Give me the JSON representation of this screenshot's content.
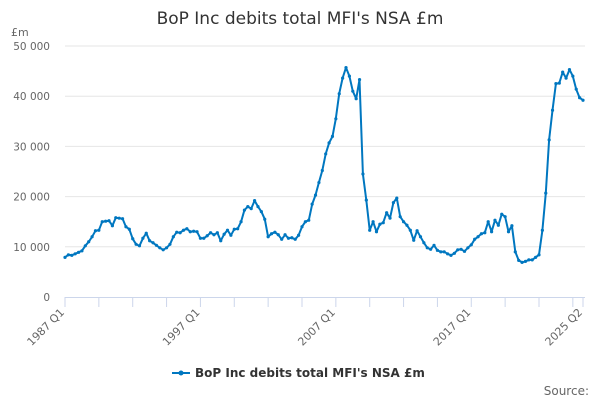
{
  "chart_data": {
    "type": "line",
    "title": "BoP Inc debits total MFI's NSA £m",
    "ylabel": "£m",
    "xlabel": "",
    "ylim": [
      0,
      50000
    ],
    "yticks": [
      0,
      10000,
      20000,
      30000,
      40000,
      50000
    ],
    "ytick_labels": [
      "0",
      "10 000",
      "20 000",
      "30 000",
      "40 000",
      "50 000"
    ],
    "x_start": "1987 Q1",
    "x_end": "2025 Q2",
    "frequency": "quarterly",
    "xtick_labels": [
      {
        "index": 0,
        "label": "1987 Q1"
      },
      {
        "index": 40,
        "label": "1997 Q1"
      },
      {
        "index": 80,
        "label": "2007 Q1"
      },
      {
        "index": 120,
        "label": "2017 Q1"
      },
      {
        "index": 153,
        "label": "2025 Q2"
      }
    ],
    "grid": true,
    "legend_position": "bottom-center",
    "series": [
      {
        "name": "BoP Inc debits total MFI's NSA £m",
        "color": "#0077c0",
        "values": [
          7900,
          8400,
          8300,
          8600,
          8900,
          9200,
          10200,
          11000,
          12000,
          13200,
          13300,
          15000,
          15100,
          15200,
          14200,
          15800,
          15700,
          15600,
          14000,
          13500,
          11600,
          10500,
          10200,
          11700,
          12700,
          11200,
          10800,
          10300,
          9800,
          9400,
          9800,
          10500,
          12000,
          12900,
          12800,
          13300,
          13600,
          13000,
          13100,
          13000,
          11700,
          11700,
          12200,
          12800,
          12400,
          12800,
          11200,
          12500,
          13300,
          12300,
          13500,
          13600,
          15000,
          17300,
          18000,
          17600,
          19200,
          18000,
          17000,
          15500,
          12000,
          12600,
          12900,
          12400,
          11500,
          12400,
          11700,
          11800,
          11500,
          12300,
          14000,
          15000,
          15300,
          18500,
          20300,
          22800,
          25200,
          28500,
          30700,
          32000,
          35500,
          40500,
          43600,
          45700,
          44000,
          41000,
          39500,
          43300,
          24500,
          19300,
          13300,
          15000,
          13000,
          14500,
          14800,
          16800,
          15700,
          18800,
          19700,
          16000,
          15000,
          14300,
          13300,
          11300,
          13200,
          12000,
          10800,
          9800,
          9500,
          10300,
          9300,
          9000,
          9000,
          8600,
          8300,
          8700,
          9400,
          9500,
          9100,
          9800,
          10400,
          11500,
          12000,
          12600,
          12800,
          15000,
          13000,
          15300,
          14300,
          16500,
          16000,
          13000,
          14200,
          9000,
          7300,
          6900,
          7100,
          7400,
          7400,
          7900,
          8400,
          13300,
          20700,
          31300,
          37200,
          42500,
          42600,
          44800,
          43600,
          45300,
          44000,
          41400,
          39700,
          39200
        ]
      }
    ],
    "source_label": "Source:"
  }
}
